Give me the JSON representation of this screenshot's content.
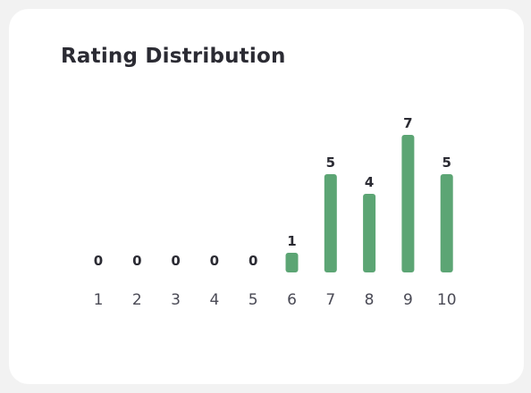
{
  "title": "Rating Distribution",
  "colors": {
    "bar": "#5ca574",
    "card_background": "#ffffff",
    "page_background": "#f2f2f2"
  },
  "chart_data": {
    "type": "bar",
    "title": "Rating Distribution",
    "categories": [
      "1",
      "2",
      "3",
      "4",
      "5",
      "6",
      "7",
      "8",
      "9",
      "10"
    ],
    "values": [
      0,
      0,
      0,
      0,
      0,
      1,
      5,
      4,
      7,
      5
    ],
    "data_labels": [
      "0",
      "0",
      "0",
      "0",
      "0",
      "1",
      "5",
      "4",
      "7",
      "5"
    ],
    "xlabel": "",
    "ylabel": "",
    "ylim": [
      0,
      7
    ],
    "grid": false,
    "legend": "none"
  }
}
